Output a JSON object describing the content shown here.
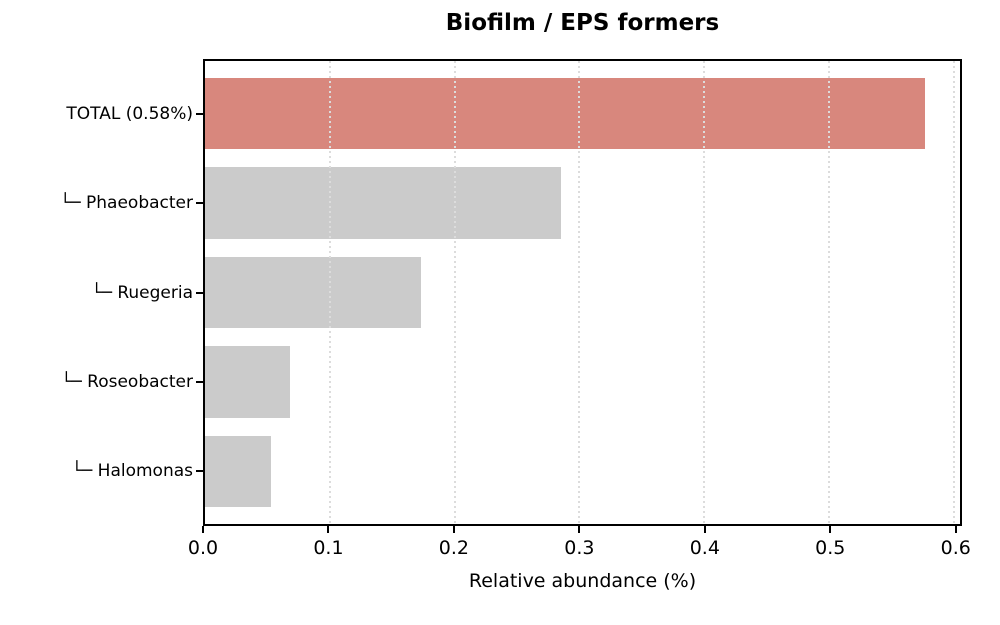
{
  "chart_data": {
    "type": "bar",
    "orientation": "horizontal",
    "title": "Biofilm / EPS formers",
    "xlabel": "Relative abundance (%)",
    "ylabel": "",
    "categories": [
      "TOTAL (0.58%)",
      "└─ Phaeobacter",
      "└─ Ruegeria",
      "└─ Roseobacter",
      "└─ Halomonas"
    ],
    "values": [
      0.577,
      0.285,
      0.173,
      0.068,
      0.053
    ],
    "bar_colors": [
      "#d8877d",
      "#cbcbcb",
      "#cbcbcb",
      "#cbcbcb",
      "#cbcbcb"
    ],
    "total_label_value": "0.58%",
    "xlim": [
      0,
      0.605
    ],
    "xticks": [
      0.0,
      0.1,
      0.2,
      0.3,
      0.4,
      0.5,
      0.6
    ],
    "xtick_labels": [
      "0.0",
      "0.1",
      "0.2",
      "0.3",
      "0.4",
      "0.5",
      "0.6"
    ],
    "grid": "vertical-dotted",
    "grid_above_bars": true,
    "legend": "none"
  },
  "colors": {
    "accent_bar": "#d8877d",
    "default_bar": "#cbcbcb",
    "grid": "#dcdcdc",
    "spine": "#000000",
    "background": "#ffffff",
    "text": "#000000"
  }
}
